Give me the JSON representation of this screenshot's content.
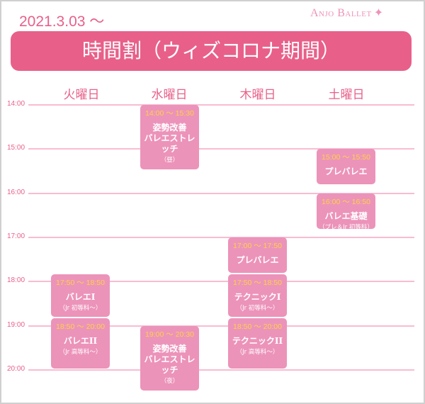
{
  "header": {
    "date": "2021.3.03 ～",
    "logo": "Anjo Ballet",
    "title": "時間割（ウィズコロナ期間）"
  },
  "colors": {
    "accent": "#e8608a",
    "block": "#ec93ba",
    "time_text": "#fcd343",
    "grid": "#f8bcd2"
  },
  "days": [
    "火曜日",
    "水曜日",
    "木曜日",
    "土曜日"
  ],
  "times": [
    "14:00",
    "15:00",
    "16:00",
    "17:00",
    "18:00",
    "19:00",
    "20:00"
  ],
  "classes": [
    {
      "day": 1,
      "start": "14:00",
      "end": "15:30",
      "time": "14:00 ～ 15:30",
      "name": [
        "姿勢改善",
        "バレエストレッチ"
      ],
      "sub": "（昼）"
    },
    {
      "day": 3,
      "start": "15:00",
      "end": "15:50",
      "time": "15:00 ～ 15:50",
      "name": [
        "プレバレエ"
      ],
      "sub": ""
    },
    {
      "day": 3,
      "start": "16:00",
      "end": "16:50",
      "time": "16:00 ～ 16:50",
      "name": [
        "バレエ基礎"
      ],
      "sub": "（プレ＆Jr 初等科）"
    },
    {
      "day": 2,
      "start": "17:00",
      "end": "17:50",
      "time": "17:00 ～ 17:50",
      "name": [
        "プレバレエ"
      ],
      "sub": ""
    },
    {
      "day": 0,
      "start": "17:50",
      "end": "18:50",
      "time": "17:50 ～ 18:50",
      "name": [
        "バレエI"
      ],
      "sub": "（Jr 初等科～）"
    },
    {
      "day": 2,
      "start": "17:50",
      "end": "18:50",
      "time": "17:50 ～ 18:50",
      "name": [
        "テクニックI"
      ],
      "sub": "（Jr 初等科～）"
    },
    {
      "day": 0,
      "start": "18:50",
      "end": "20:00",
      "time": "18:50 ～ 20:00",
      "name": [
        "バレエII"
      ],
      "sub": "（Jr 高等科～）"
    },
    {
      "day": 1,
      "start": "19:00",
      "end": "20:30",
      "time": "19:00 ～ 20:30",
      "name": [
        "姿勢改善",
        "バレエストレッチ"
      ],
      "sub": "（夜）"
    },
    {
      "day": 2,
      "start": "18:50",
      "end": "20:00",
      "time": "18:50 ～ 20:00",
      "name": [
        "テクニックII"
      ],
      "sub": "（Jr 高等科～）"
    }
  ]
}
